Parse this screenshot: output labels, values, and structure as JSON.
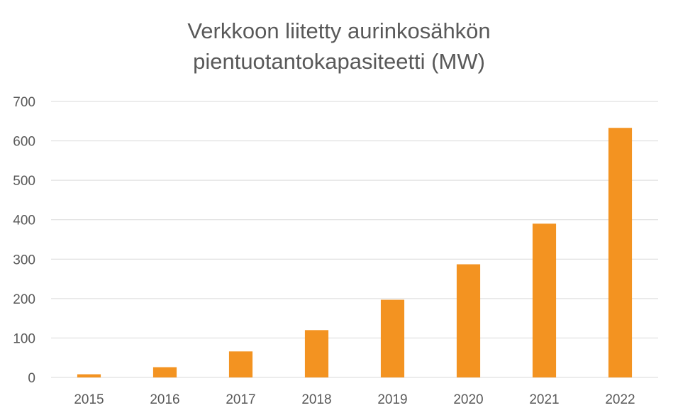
{
  "chart_data": {
    "type": "bar",
    "title_lines": [
      "Verkkoon liitetty aurinkosähkön",
      "pientuotantokapasiteetti (MW)"
    ],
    "categories": [
      "2015",
      "2016",
      "2017",
      "2018",
      "2019",
      "2020",
      "2021",
      "2022"
    ],
    "values": [
      8,
      26,
      66,
      120,
      197,
      287,
      390,
      633
    ],
    "ylim": [
      0,
      700
    ],
    "yticks": [
      0,
      100,
      200,
      300,
      400,
      500,
      600,
      700
    ],
    "grid": true,
    "legend": "none",
    "bar_color": "#F39321",
    "grid_color": "#D9D9D9",
    "text_color": "#595959"
  }
}
